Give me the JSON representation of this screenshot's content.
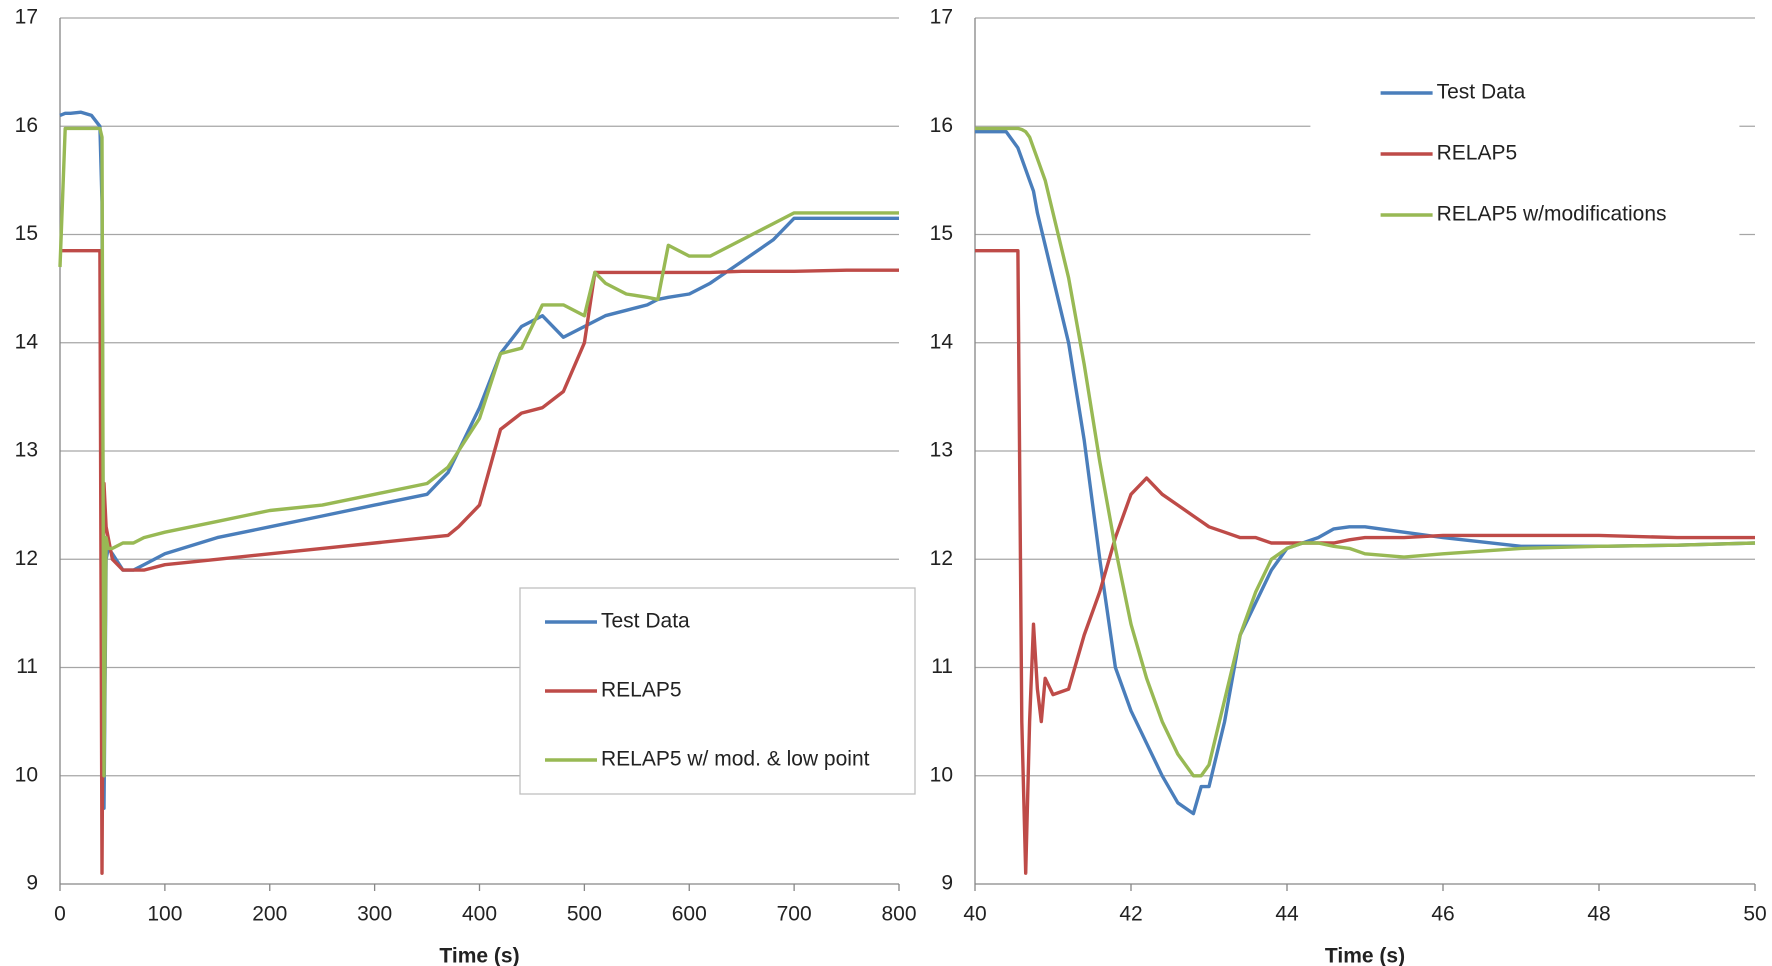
{
  "chart_data": [
    {
      "type": "line",
      "xlabel": "Time (s)",
      "xlim": [
        0,
        800
      ],
      "xticks": [
        0,
        100,
        200,
        300,
        400,
        500,
        600,
        700,
        800
      ],
      "ylim": [
        9,
        17
      ],
      "yticks": [
        9,
        10,
        11,
        12,
        13,
        14,
        15,
        16,
        17
      ],
      "grid": true,
      "legend": "lower right",
      "x": [
        0,
        5,
        10,
        20,
        30,
        38,
        40,
        42,
        44,
        46,
        50,
        60,
        70,
        80,
        100,
        150,
        200,
        250,
        300,
        350,
        370,
        380,
        400,
        420,
        440,
        460,
        480,
        500,
        510,
        520,
        540,
        560,
        570,
        580,
        600,
        620,
        650,
        680,
        700,
        750,
        800
      ],
      "series": [
        {
          "name": "Test Data",
          "color": "#4a7ebb",
          "values": [
            16.1,
            16.12,
            16.12,
            16.13,
            16.1,
            16.0,
            15.3,
            9.7,
            12.0,
            12.1,
            12.05,
            11.9,
            11.9,
            11.95,
            12.05,
            12.2,
            12.3,
            12.4,
            12.5,
            12.6,
            12.8,
            13.0,
            13.4,
            13.9,
            14.15,
            14.25,
            14.05,
            14.15,
            14.2,
            14.25,
            14.3,
            14.35,
            14.4,
            14.42,
            14.45,
            14.55,
            14.75,
            14.95,
            15.15,
            15.15,
            15.15
          ]
        },
        {
          "name": "RELAP5",
          "color": "#be4b48",
          "values": [
            14.85,
            14.85,
            14.85,
            14.85,
            14.85,
            14.85,
            9.1,
            12.7,
            12.3,
            12.2,
            12.0,
            11.9,
            11.9,
            11.9,
            11.95,
            12.0,
            12.05,
            12.1,
            12.15,
            12.2,
            12.22,
            12.3,
            12.5,
            13.2,
            13.35,
            13.4,
            13.55,
            14.0,
            14.65,
            14.65,
            14.65,
            14.65,
            14.65,
            14.65,
            14.65,
            14.65,
            14.66,
            14.66,
            14.66,
            14.67,
            14.67
          ]
        },
        {
          "name": "RELAP5 w/ mod. & low point",
          "color": "#98b954",
          "values": [
            14.7,
            15.98,
            15.98,
            15.98,
            15.98,
            15.98,
            15.9,
            10.0,
            12.2,
            12.1,
            12.1,
            12.15,
            12.15,
            12.2,
            12.25,
            12.35,
            12.45,
            12.5,
            12.6,
            12.7,
            12.85,
            13.0,
            13.3,
            13.9,
            13.95,
            14.35,
            14.35,
            14.25,
            14.65,
            14.55,
            14.45,
            14.42,
            14.4,
            14.9,
            14.8,
            14.8,
            14.95,
            15.1,
            15.2,
            15.2,
            15.2
          ]
        }
      ]
    },
    {
      "type": "line",
      "xlabel": "Time (s)",
      "xlim": [
        40,
        50
      ],
      "xticks": [
        40,
        42,
        44,
        46,
        48,
        50
      ],
      "ylim": [
        9,
        17
      ],
      "yticks": [
        9,
        10,
        11,
        12,
        13,
        14,
        15,
        16,
        17
      ],
      "grid": true,
      "legend": "upper right",
      "x": [
        40,
        40.2,
        40.4,
        40.55,
        40.6,
        40.65,
        40.7,
        40.75,
        40.8,
        40.85,
        40.9,
        41,
        41.2,
        41.4,
        41.6,
        41.8,
        42,
        42.2,
        42.4,
        42.6,
        42.8,
        42.9,
        43,
        43.2,
        43.4,
        43.6,
        43.8,
        44,
        44.2,
        44.4,
        44.6,
        44.8,
        45,
        45.5,
        46,
        47,
        48,
        49,
        50
      ],
      "series": [
        {
          "name": "Test Data",
          "color": "#4a7ebb",
          "values": [
            15.95,
            15.95,
            15.95,
            15.8,
            15.7,
            15.6,
            15.5,
            15.4,
            15.2,
            15.05,
            14.9,
            14.6,
            14.0,
            13.1,
            12.0,
            11.0,
            10.6,
            10.3,
            10.0,
            9.75,
            9.65,
            9.9,
            9.9,
            10.5,
            11.3,
            11.6,
            11.9,
            12.1,
            12.15,
            12.2,
            12.28,
            12.3,
            12.3,
            12.25,
            12.2,
            12.12,
            12.12,
            12.13,
            12.15
          ]
        },
        {
          "name": "RELAP5",
          "color": "#be4b48",
          "values": [
            14.85,
            14.85,
            14.85,
            14.85,
            10.5,
            9.1,
            10.5,
            11.4,
            10.8,
            10.5,
            10.9,
            10.75,
            10.8,
            11.3,
            11.7,
            12.2,
            12.6,
            12.75,
            12.6,
            12.5,
            12.4,
            12.35,
            12.3,
            12.25,
            12.2,
            12.2,
            12.15,
            12.15,
            12.15,
            12.15,
            12.15,
            12.18,
            12.2,
            12.2,
            12.22,
            12.22,
            12.22,
            12.2,
            12.2
          ]
        },
        {
          "name": "RELAP5 w/modifications",
          "color": "#98b954",
          "values": [
            15.98,
            15.98,
            15.98,
            15.98,
            15.97,
            15.95,
            15.9,
            15.8,
            15.7,
            15.6,
            15.5,
            15.2,
            14.6,
            13.8,
            12.9,
            12.1,
            11.4,
            10.9,
            10.5,
            10.2,
            10.0,
            10.0,
            10.1,
            10.7,
            11.3,
            11.7,
            12.0,
            12.1,
            12.15,
            12.15,
            12.12,
            12.1,
            12.05,
            12.02,
            12.05,
            12.1,
            12.12,
            12.13,
            12.15
          ]
        }
      ]
    }
  ]
}
